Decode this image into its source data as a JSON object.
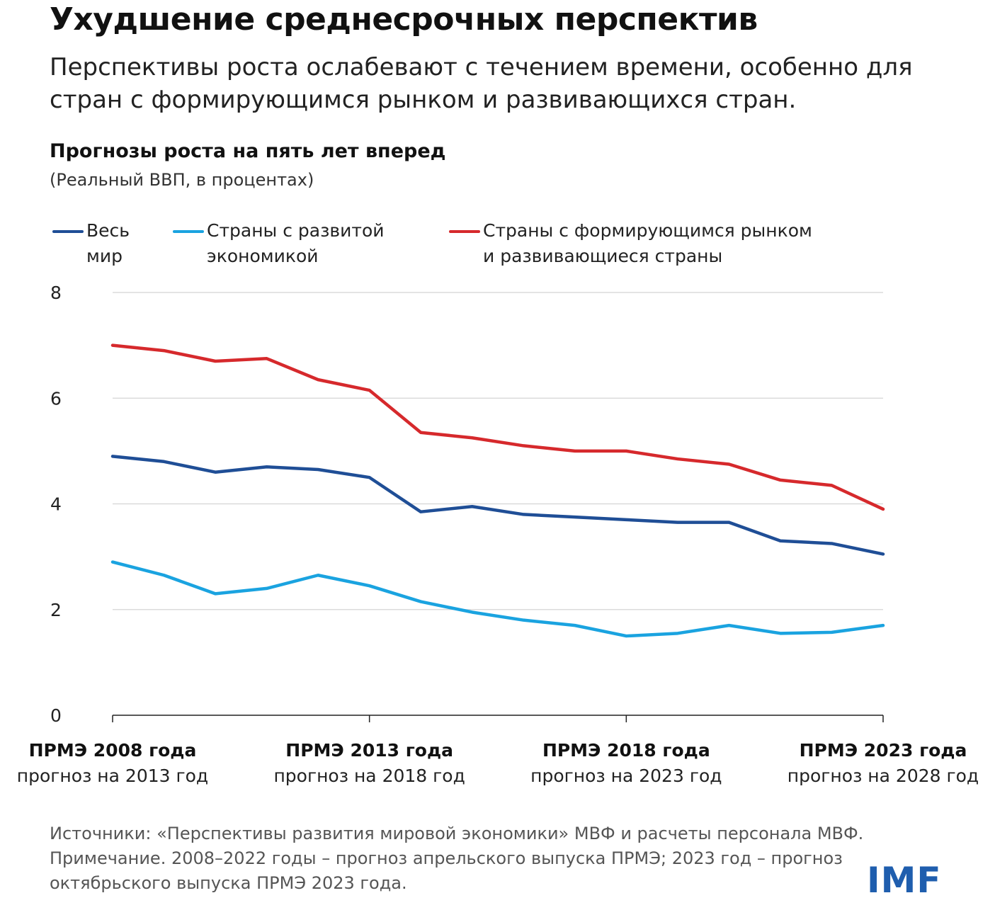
{
  "header": {
    "title": "Ухудшение среднесрочных перспектив",
    "subtitle": "Перспективы роста ослабевают с течением времени, особенно для стран с формирующимся рынком и развивающихся стран."
  },
  "chart_data": {
    "type": "line",
    "title": "Прогнозы роста на пять лет вперед",
    "subtitle": "(Реальный ВВП, в процентах)",
    "ylim": [
      0,
      8
    ],
    "y_ticks": [
      0,
      2,
      4,
      6,
      8
    ],
    "grid": true,
    "legend_position": "top",
    "x": [
      2008,
      2009,
      2010,
      2011,
      2012,
      2013,
      2014,
      2015,
      2016,
      2017,
      2018,
      2019,
      2020,
      2021,
      2022,
      2023
    ],
    "x_tick_labels": [
      {
        "x": 2008,
        "line1": "ПРМЭ 2008 года",
        "line2": "прогноз на 2013 год"
      },
      {
        "x": 2013,
        "line1": "ПРМЭ 2013 года",
        "line2": "прогноз на 2018 год"
      },
      {
        "x": 2018,
        "line1": "ПРМЭ 2018 года",
        "line2": "прогноз на 2023 год"
      },
      {
        "x": 2023,
        "line1": "ПРМЭ 2023 года",
        "line2": "прогноз на 2028 год"
      }
    ],
    "series": [
      {
        "name": "Весь мир",
        "legend_line1": "Весь",
        "legend_line2": "мир",
        "color": "#1f4e96",
        "values": [
          4.9,
          4.8,
          4.6,
          4.7,
          4.65,
          4.5,
          3.85,
          3.95,
          3.8,
          3.75,
          3.7,
          3.65,
          3.65,
          3.3,
          3.25,
          3.05
        ]
      },
      {
        "name": "Страны с развитой экономикой",
        "legend_line1": "Страны с развитой",
        "legend_line2": "экономикой",
        "color": "#1aa3e0",
        "values": [
          2.9,
          2.65,
          2.3,
          2.4,
          2.65,
          2.45,
          2.15,
          1.95,
          1.8,
          1.7,
          1.5,
          1.55,
          1.7,
          1.55,
          1.57,
          1.7
        ]
      },
      {
        "name": "Страны с формирующимся рынком и развивающиеся страны",
        "legend_line1": "Страны с формирующимся рынком",
        "legend_line2": "и развивающиеся страны",
        "color": "#d6292c",
        "values": [
          7.0,
          6.9,
          6.7,
          6.75,
          6.35,
          6.15,
          5.35,
          5.25,
          5.1,
          5.0,
          5.0,
          4.85,
          4.75,
          4.45,
          4.35,
          3.9
        ]
      }
    ]
  },
  "footer": {
    "sources": "Источники: «Перспективы развития мировой экономики» МВФ и расчеты персонала МВФ.",
    "note": "Примечание. 2008–2022 годы – прогноз апрельского выпуска ПРМЭ; 2023 год – прогноз октябрьского выпуска ПРМЭ 2023 года."
  },
  "logo": {
    "text": "IMF",
    "color": "#1f5eae"
  }
}
